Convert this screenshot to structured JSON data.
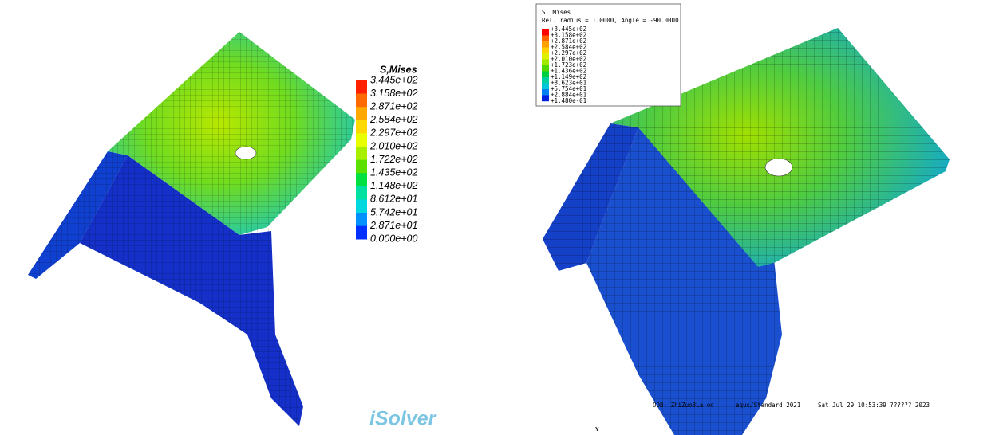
{
  "left_legend": {
    "title": "S,Mises",
    "labels": [
      "3.445e+02",
      "3.158e+02",
      "2.871e+02",
      "2.584e+02",
      "2.297e+02",
      "2.010e+02",
      "1.722e+02",
      "1.435e+02",
      "1.148e+02",
      "8.612e+01",
      "5.742e+01",
      "2.871e+01",
      "0.000e+00"
    ],
    "colors": [
      "#ff2000",
      "#ff6a00",
      "#ffa800",
      "#ffd800",
      "#e8ff00",
      "#a8f000",
      "#5ce000",
      "#00e040",
      "#00e0a0",
      "#00d8e0",
      "#0090ff",
      "#0030ff"
    ]
  },
  "right_legend": {
    "title": "S, Mises",
    "subtitle": "Rel. radius = 1.0000, Angle = -90.0000",
    "labels": [
      "+3.445e+02",
      "+3.158e+02",
      "+2.871e+02",
      "+2.584e+02",
      "+2.297e+02",
      "+2.010e+02",
      "+1.723e+02",
      "+1.436e+02",
      "+1.149e+02",
      "+8.623e+01",
      "+5.754e+01",
      "+2.884e+01",
      "+1.480e-01"
    ],
    "colors": [
      "#ff0000",
      "#ff6000",
      "#ffa000",
      "#ffd000",
      "#e0f000",
      "#a0e800",
      "#50d800",
      "#00d040",
      "#00d0a0",
      "#00c8d8",
      "#0080f0",
      "#0020e0"
    ]
  },
  "footer": {
    "odb": "ODB: ZhiZuo3La.od",
    "version": "aqus/Standard 2021",
    "date": "Sat Jul 29 10:53:39 ?????? 2023"
  },
  "watermark": "iSolver",
  "axis_label": "Y"
}
